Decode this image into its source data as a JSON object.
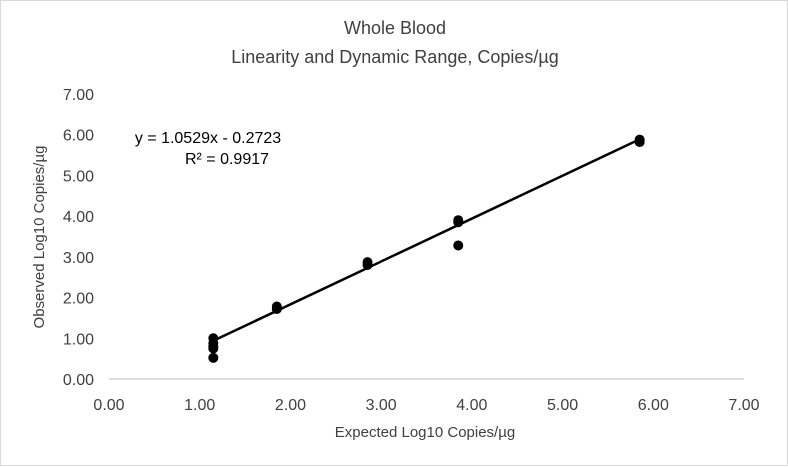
{
  "chart_data": {
    "type": "scatter",
    "title": [
      "Whole Blood",
      "Linearity and Dynamic Range, Copies/µg"
    ],
    "xlabel": "Expected Log10 Copies/µg",
    "ylabel": "Observed Log10 Copies/µg",
    "xlim": [
      0,
      7
    ],
    "ylim": [
      0,
      7
    ],
    "x_ticks": [
      "0.00",
      "1.00",
      "2.00",
      "3.00",
      "4.00",
      "5.00",
      "6.00",
      "7.00"
    ],
    "y_ticks": [
      "0.00",
      "1.00",
      "2.00",
      "3.00",
      "4.00",
      "5.00",
      "6.00",
      "7.00"
    ],
    "grid": false,
    "legend": "none",
    "series": [
      {
        "points": [
          [
            1.15,
            1.0
          ],
          [
            1.15,
            0.88
          ],
          [
            1.15,
            0.8
          ],
          [
            1.15,
            0.75
          ],
          [
            1.15,
            0.52
          ],
          [
            1.85,
            1.78
          ],
          [
            1.85,
            1.72
          ],
          [
            2.85,
            2.87
          ],
          [
            2.85,
            2.8
          ],
          [
            3.85,
            3.9
          ],
          [
            3.85,
            3.85
          ],
          [
            3.85,
            3.28
          ],
          [
            5.85,
            5.88
          ],
          [
            5.85,
            5.82
          ]
        ]
      }
    ],
    "trendline": {
      "slope": 1.0529,
      "intercept": -0.2723,
      "x_range": [
        1.15,
        5.85
      ],
      "equation": "y = 1.0529x - 0.2723",
      "r2": "R² = 0.9917"
    },
    "colors": {
      "marker": "#000000",
      "trendline": "#000000",
      "axis": "#bfbfbf",
      "text": "#404040"
    }
  }
}
